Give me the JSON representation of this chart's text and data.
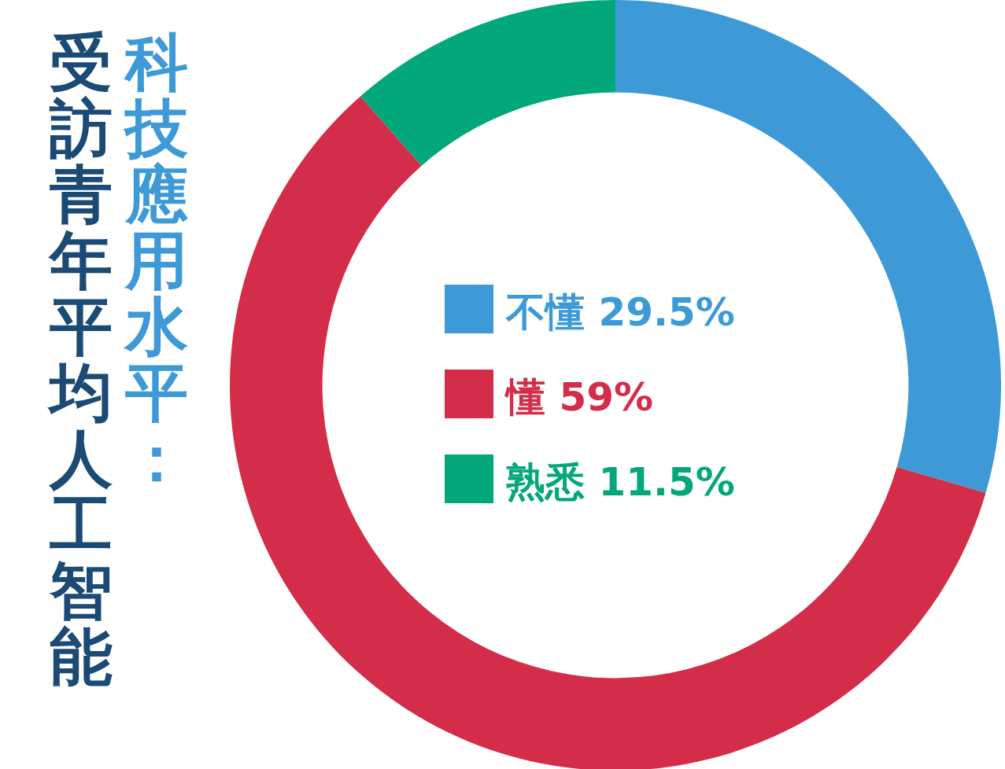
{
  "chart_data": {
    "type": "donut",
    "title": "受訪青年平均人工智能",
    "subtitle": "科技應用水平：",
    "categories": [
      "不懂",
      "懂",
      "熟悉"
    ],
    "values": [
      29.5,
      59,
      11.5
    ],
    "value_labels": [
      "29.5%",
      "59%",
      "11.5%"
    ],
    "colors": [
      "#3d9ad6",
      "#d42d4a",
      "#03a87a"
    ],
    "legend": "center"
  }
}
